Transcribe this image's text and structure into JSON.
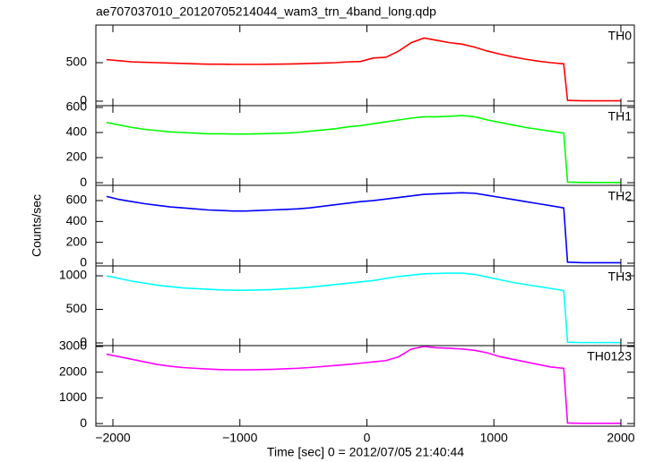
{
  "title": "ae707037010_20120705214044_wam3_trn_4band_long.qdp",
  "xlabel": "Time [sec] 0 = 2012/07/05 21:40:44",
  "ylabel": "Counts/sec",
  "xlim": [
    -2134,
    2106
  ],
  "xticks": [
    {
      "value": -2000,
      "label": "−2000"
    },
    {
      "value": -1000,
      "label": "−1000"
    },
    0,
    1000,
    2000
  ],
  "x": [
    -2050,
    -1950,
    -1850,
    -1750,
    -1650,
    -1550,
    -1450,
    -1350,
    -1250,
    -1150,
    -1050,
    -950,
    -850,
    -750,
    -650,
    -550,
    -450,
    -350,
    -250,
    -150,
    -50,
    50,
    150,
    250,
    350,
    450,
    550,
    650,
    750,
    850,
    950,
    1050,
    1150,
    1250,
    1350,
    1450,
    1550,
    1580,
    1700,
    2000
  ],
  "chart_data": [
    {
      "type": "line",
      "ylim": [
        -58,
        988
      ],
      "yticks": [
        0,
        500
      ],
      "series": [
        {
          "name": "TH0",
          "color": "#ff0000",
          "values": [
            540,
            525,
            510,
            505,
            500,
            495,
            490,
            485,
            480,
            480,
            478,
            478,
            478,
            480,
            482,
            485,
            490,
            495,
            500,
            510,
            515,
            560,
            570,
            650,
            760,
            820,
            790,
            760,
            740,
            700,
            650,
            610,
            575,
            545,
            520,
            500,
            485,
            10,
            5,
            5
          ]
        }
      ]
    },
    {
      "type": "line",
      "ylim": [
        -21,
        614
      ],
      "yticks": [
        0,
        200,
        400,
        600
      ],
      "series": [
        {
          "name": "TH1",
          "color": "#00ff00",
          "values": [
            480,
            460,
            440,
            425,
            415,
            405,
            400,
            395,
            390,
            390,
            388,
            388,
            390,
            392,
            395,
            400,
            410,
            420,
            430,
            445,
            455,
            470,
            485,
            500,
            515,
            525,
            525,
            530,
            535,
            525,
            500,
            480,
            460,
            440,
            425,
            410,
            395,
            5,
            2,
            2
          ]
        }
      ]
    },
    {
      "type": "line",
      "ylim": [
        -26,
        746
      ],
      "yticks": [
        0,
        200,
        400,
        600
      ],
      "series": [
        {
          "name": "TH2",
          "color": "#0000ff",
          "values": [
            640,
            610,
            590,
            570,
            555,
            540,
            530,
            520,
            510,
            505,
            500,
            500,
            505,
            510,
            515,
            520,
            530,
            545,
            560,
            575,
            590,
            600,
            615,
            630,
            645,
            660,
            665,
            670,
            675,
            670,
            650,
            630,
            610,
            590,
            570,
            550,
            530,
            10,
            5,
            5
          ]
        }
      ]
    },
    {
      "type": "line",
      "ylim": [
        -40,
        1147
      ],
      "yticks": [
        0,
        500,
        1000
      ],
      "series": [
        {
          "name": "TH3",
          "color": "#00ffff",
          "values": [
            1000,
            960,
            920,
            890,
            860,
            840,
            820,
            810,
            800,
            790,
            785,
            785,
            790,
            795,
            805,
            815,
            830,
            850,
            870,
            890,
            910,
            930,
            960,
            990,
            1010,
            1030,
            1035,
            1040,
            1040,
            1020,
            980,
            940,
            900,
            870,
            840,
            810,
            780,
            10,
            5,
            5
          ]
        }
      ]
    },
    {
      "type": "line",
      "ylim": [
        -102,
        3034
      ],
      "yticks": [
        0,
        1000,
        2000,
        3000
      ],
      "series": [
        {
          "name": "TH0123",
          "color": "#ff00ff",
          "values": [
            2700,
            2600,
            2500,
            2400,
            2300,
            2230,
            2180,
            2150,
            2120,
            2100,
            2090,
            2090,
            2100,
            2110,
            2130,
            2150,
            2180,
            2220,
            2260,
            2300,
            2350,
            2400,
            2450,
            2600,
            2900,
            3000,
            2950,
            2930,
            2900,
            2850,
            2750,
            2600,
            2500,
            2400,
            2300,
            2200,
            2150,
            20,
            10,
            10
          ]
        }
      ]
    }
  ]
}
